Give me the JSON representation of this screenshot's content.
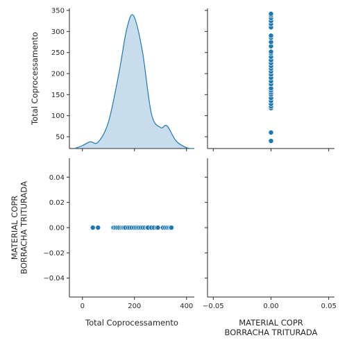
{
  "chart_data": {
    "type": "pairplot",
    "variables": [
      "Total Coprocessamento",
      "MATERIAL COPR\nBORRACHA TRITURADA"
    ],
    "color": "#1f77b4",
    "panels": [
      {
        "row": 0,
        "col": 0,
        "type": "kde",
        "xlim": [
          -50,
          430
        ],
        "ylim": [
          22,
          355
        ],
        "yticks": [
          "50",
          "100",
          "150",
          "200",
          "250",
          "300",
          "350"
        ],
        "ylabel": "Total Coprocessamento",
        "density_curve": [
          [
            -30,
            22
          ],
          [
            0,
            29
          ],
          [
            30,
            38
          ],
          [
            60,
            37
          ],
          [
            100,
            85
          ],
          [
            140,
            200
          ],
          [
            170,
            305
          ],
          [
            196,
            338
          ],
          [
            230,
            255
          ],
          [
            265,
            105
          ],
          [
            300,
            72
          ],
          [
            325,
            76
          ],
          [
            360,
            40
          ],
          [
            400,
            24
          ],
          [
            430,
            22
          ]
        ]
      },
      {
        "row": 0,
        "col": 1,
        "type": "scatter",
        "xlim": [
          -0.055,
          0.055
        ],
        "ylim": [
          22,
          355
        ],
        "points": [
          [
            0,
            40
          ],
          [
            0,
            60
          ],
          [
            0,
            118
          ],
          [
            0,
            122
          ],
          [
            0,
            128
          ],
          [
            0,
            135
          ],
          [
            0,
            142
          ],
          [
            0,
            150
          ],
          [
            0,
            155
          ],
          [
            0,
            160
          ],
          [
            0,
            165
          ],
          [
            0,
            175
          ],
          [
            0,
            182
          ],
          [
            0,
            190
          ],
          [
            0,
            198
          ],
          [
            0,
            205
          ],
          [
            0,
            212
          ],
          [
            0,
            218
          ],
          [
            0,
            225
          ],
          [
            0,
            232
          ],
          [
            0,
            240
          ],
          [
            0,
            248
          ],
          [
            0,
            252
          ],
          [
            0,
            265
          ],
          [
            0,
            275
          ],
          [
            0,
            285
          ],
          [
            0,
            290
          ],
          [
            0,
            310
          ],
          [
            0,
            318
          ],
          [
            0,
            325
          ],
          [
            0,
            332
          ],
          [
            0,
            338
          ],
          [
            0,
            342
          ]
        ]
      },
      {
        "row": 1,
        "col": 0,
        "type": "scatter",
        "xlim": [
          -50,
          430
        ],
        "ylim": [
          -0.055,
          0.055
        ],
        "xticks": [
          "0",
          "200",
          "400"
        ],
        "yticks": [
          "−0.04",
          "−0.02",
          "0.00",
          "0.02",
          "0.04"
        ],
        "xlabel": "Total Coprocessamento",
        "ylabel": [
          "MATERIAL COPR",
          "BORRACHA TRITURADA"
        ],
        "points": [
          [
            40,
            0
          ],
          [
            60,
            0
          ],
          [
            118,
            0
          ],
          [
            122,
            0
          ],
          [
            128,
            0
          ],
          [
            135,
            0
          ],
          [
            142,
            0
          ],
          [
            150,
            0
          ],
          [
            155,
            0
          ],
          [
            160,
            0
          ],
          [
            165,
            0
          ],
          [
            175,
            0
          ],
          [
            182,
            0
          ],
          [
            190,
            0
          ],
          [
            198,
            0
          ],
          [
            205,
            0
          ],
          [
            212,
            0
          ],
          [
            218,
            0
          ],
          [
            225,
            0
          ],
          [
            232,
            0
          ],
          [
            240,
            0
          ],
          [
            248,
            0
          ],
          [
            252,
            0
          ],
          [
            265,
            0
          ],
          [
            275,
            0
          ],
          [
            285,
            0
          ],
          [
            290,
            0
          ],
          [
            310,
            0
          ],
          [
            318,
            0
          ],
          [
            325,
            0
          ],
          [
            332,
            0
          ],
          [
            338,
            0
          ],
          [
            342,
            0
          ]
        ]
      },
      {
        "row": 1,
        "col": 1,
        "type": "empty",
        "xlim": [
          -0.055,
          0.055
        ],
        "ylim": [
          -0.055,
          0.055
        ],
        "xticks": [
          "−0.05",
          "0.00",
          "0.05"
        ],
        "xlabel": [
          "MATERIAL COPR",
          "BORRACHA TRITURADA"
        ]
      }
    ]
  }
}
